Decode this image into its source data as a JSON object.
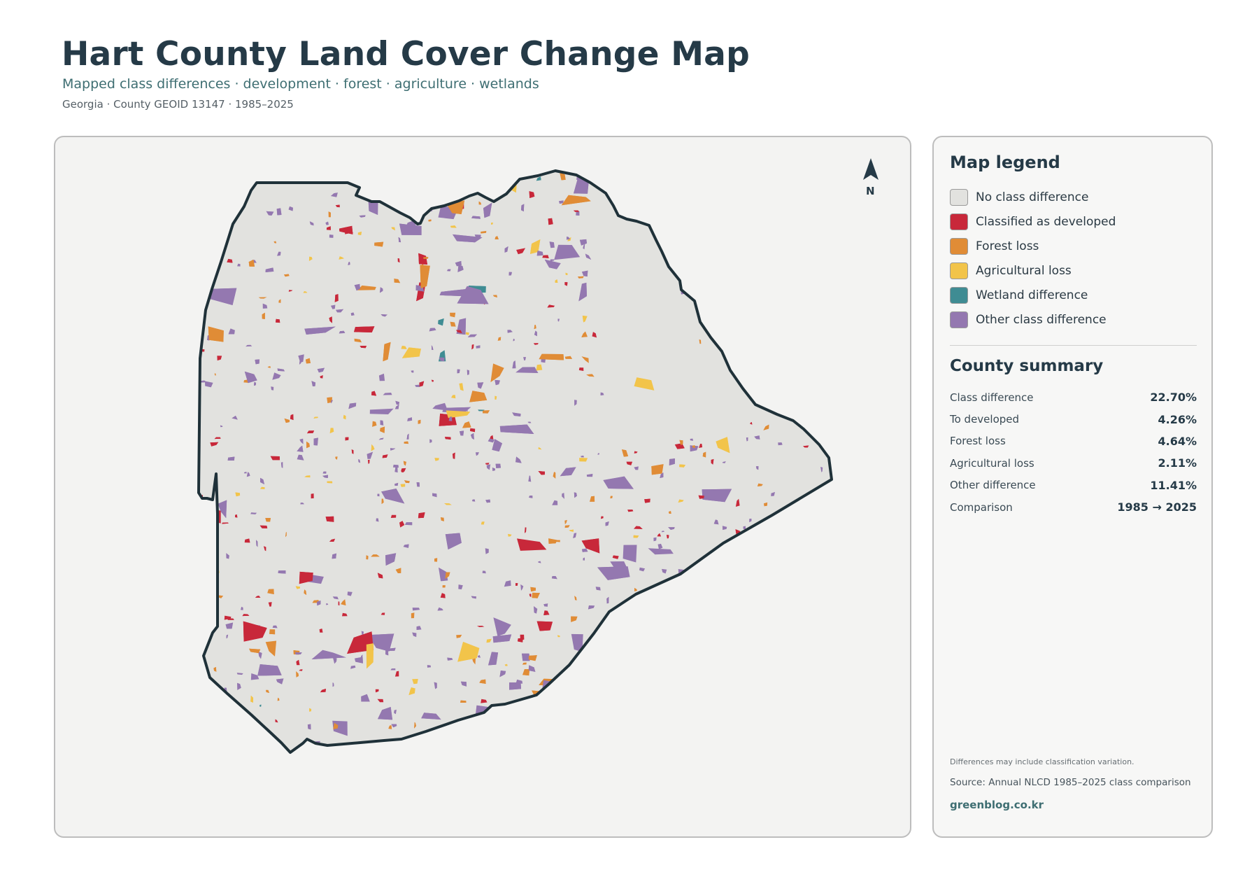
{
  "header": {
    "title": "Hart County Land Cover Change Map",
    "subtitle": "Mapped class differences · development · forest · agriculture · wetlands",
    "meta": "Georgia · County GEOID 13147 · 1985–2025"
  },
  "map": {
    "north_label": "N",
    "colors": {
      "background": "#f3f3f2",
      "no_change": "#e2e2df",
      "boundary": "#1f3139"
    }
  },
  "legend": {
    "title": "Map legend",
    "items": [
      {
        "label": "No class difference",
        "color": "#e2e2df"
      },
      {
        "label": "Classified as developed",
        "color": "#c8283a"
      },
      {
        "label": "Forest loss",
        "color": "#e08c36"
      },
      {
        "label": "Agricultural loss",
        "color": "#f2c44a"
      },
      {
        "label": "Wetland difference",
        "color": "#3f8c93"
      },
      {
        "label": "Other class difference",
        "color": "#9478b0"
      }
    ]
  },
  "summary": {
    "title": "County summary",
    "rows": [
      {
        "label": "Class difference",
        "value": "22.70%"
      },
      {
        "label": "To developed",
        "value": "4.26%"
      },
      {
        "label": "Forest loss",
        "value": "4.64%"
      },
      {
        "label": "Agricultural loss",
        "value": "2.11%"
      },
      {
        "label": "Other difference",
        "value": "11.41%"
      },
      {
        "label": "Comparison",
        "value": "1985 → 2025"
      }
    ]
  },
  "footer": {
    "note": "Differences may include classification variation.",
    "source": "Source: Annual NLCD 1985–2025 class comparison",
    "site": "greenblog.co.kr"
  }
}
